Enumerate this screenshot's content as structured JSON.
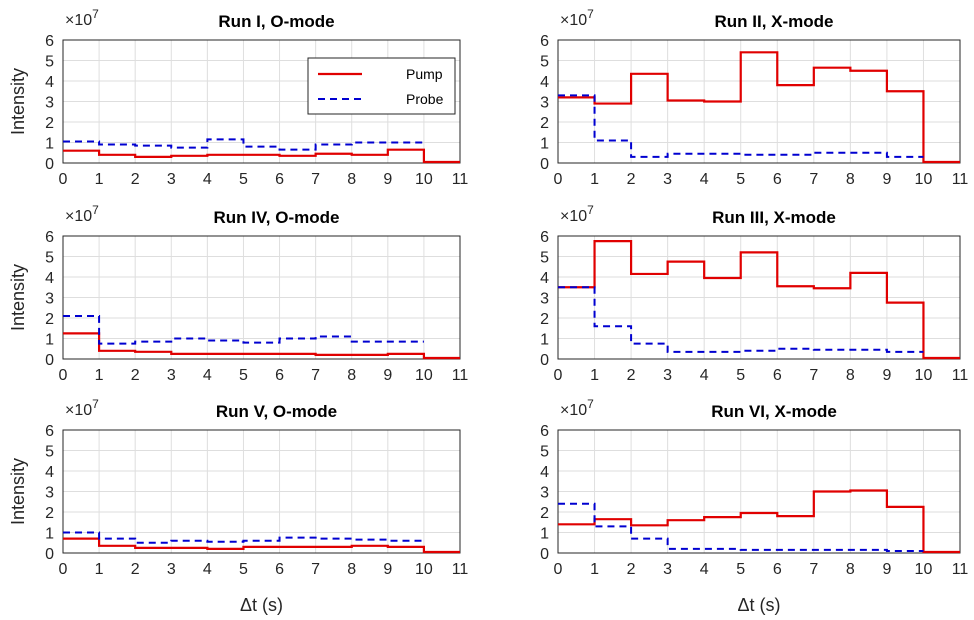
{
  "multiplier_text": "×10",
  "multiplier_exp": "7",
  "ylabel": "Intensity",
  "xlabel": "Δt (s)",
  "legend": {
    "pump": "Pump",
    "probe": "Probe"
  },
  "colors": {
    "pump": "#e00000",
    "probe": "#0000d0"
  },
  "chart_data": [
    {
      "type": "line",
      "title": "Run I, O-mode",
      "xlim": [
        0,
        11
      ],
      "ylim": [
        0,
        6
      ],
      "xticks": [
        0,
        1,
        2,
        3,
        4,
        5,
        6,
        7,
        8,
        9,
        10,
        11
      ],
      "yticks": [
        0,
        1,
        2,
        3,
        4,
        5,
        6
      ],
      "step": true,
      "series": [
        {
          "name": "Pump",
          "style": "solid",
          "x": [
            0,
            1,
            2,
            3,
            4,
            5,
            6,
            7,
            8,
            9,
            10,
            11
          ],
          "values": [
            0.6,
            0.4,
            0.3,
            0.35,
            0.4,
            0.4,
            0.35,
            0.45,
            0.4,
            0.65,
            0.05,
            0.05
          ]
        },
        {
          "name": "Probe",
          "style": "dashed",
          "x": [
            0,
            1,
            2,
            3,
            4,
            5,
            6,
            7,
            8,
            9
          ],
          "values": [
            1.05,
            0.9,
            0.85,
            0.75,
            1.15,
            0.8,
            0.65,
            0.9,
            1.0,
            1.0
          ]
        }
      ]
    },
    {
      "type": "line",
      "title": "Run II, X-mode",
      "xlim": [
        0,
        11
      ],
      "ylim": [
        0,
        6
      ],
      "xticks": [
        0,
        1,
        2,
        3,
        4,
        5,
        6,
        7,
        8,
        9,
        10,
        11
      ],
      "yticks": [
        0,
        1,
        2,
        3,
        4,
        5,
        6
      ],
      "step": true,
      "series": [
        {
          "name": "Pump",
          "style": "solid",
          "x": [
            0,
            1,
            2,
            3,
            4,
            5,
            6,
            7,
            8,
            9,
            10,
            11
          ],
          "values": [
            3.2,
            2.9,
            4.35,
            3.05,
            3.0,
            5.4,
            3.8,
            4.65,
            4.5,
            3.5,
            0.05,
            0.05
          ]
        },
        {
          "name": "Probe",
          "style": "dashed",
          "x": [
            0,
            1,
            2,
            3,
            4,
            5,
            6,
            7,
            8,
            9
          ],
          "values": [
            3.3,
            1.1,
            0.3,
            0.45,
            0.45,
            0.4,
            0.4,
            0.5,
            0.5,
            0.3
          ]
        }
      ]
    },
    {
      "type": "line",
      "title": "Run IV, O-mode",
      "xlim": [
        0,
        11
      ],
      "ylim": [
        0,
        6
      ],
      "xticks": [
        0,
        1,
        2,
        3,
        4,
        5,
        6,
        7,
        8,
        9,
        10,
        11
      ],
      "yticks": [
        0,
        1,
        2,
        3,
        4,
        5,
        6
      ],
      "step": true,
      "series": [
        {
          "name": "Pump",
          "style": "solid",
          "x": [
            0,
            1,
            2,
            3,
            4,
            5,
            6,
            7,
            8,
            9,
            10,
            11
          ],
          "values": [
            1.25,
            0.4,
            0.35,
            0.25,
            0.25,
            0.25,
            0.25,
            0.2,
            0.2,
            0.25,
            0.05,
            0.05
          ]
        },
        {
          "name": "Probe",
          "style": "dashed",
          "x": [
            0,
            1,
            2,
            3,
            4,
            5,
            6,
            7,
            8,
            9
          ],
          "values": [
            2.1,
            0.75,
            0.85,
            1.0,
            0.9,
            0.8,
            1.0,
            1.1,
            0.85,
            0.85
          ]
        }
      ]
    },
    {
      "type": "line",
      "title": "Run III, X-mode",
      "xlim": [
        0,
        11
      ],
      "ylim": [
        0,
        6
      ],
      "xticks": [
        0,
        1,
        2,
        3,
        4,
        5,
        6,
        7,
        8,
        9,
        10,
        11
      ],
      "yticks": [
        0,
        1,
        2,
        3,
        4,
        5,
        6
      ],
      "step": true,
      "series": [
        {
          "name": "Pump",
          "style": "solid",
          "x": [
            0,
            1,
            2,
            3,
            4,
            5,
            6,
            7,
            8,
            9,
            10,
            11
          ],
          "values": [
            3.5,
            5.75,
            4.15,
            4.75,
            3.95,
            5.2,
            3.55,
            3.45,
            4.2,
            2.75,
            0.05,
            0.05
          ]
        },
        {
          "name": "Probe",
          "style": "dashed",
          "x": [
            0,
            1,
            2,
            3,
            4,
            5,
            6,
            7,
            8,
            9
          ],
          "values": [
            3.5,
            1.6,
            0.75,
            0.35,
            0.35,
            0.4,
            0.5,
            0.45,
            0.45,
            0.35
          ]
        }
      ]
    },
    {
      "type": "line",
      "title": "Run V, O-mode",
      "xlim": [
        0,
        11
      ],
      "ylim": [
        0,
        6
      ],
      "xticks": [
        0,
        1,
        2,
        3,
        4,
        5,
        6,
        7,
        8,
        9,
        10,
        11
      ],
      "yticks": [
        0,
        1,
        2,
        3,
        4,
        5,
        6
      ],
      "step": true,
      "series": [
        {
          "name": "Pump",
          "style": "solid",
          "x": [
            0,
            1,
            2,
            3,
            4,
            5,
            6,
            7,
            8,
            9,
            10,
            11
          ],
          "values": [
            0.7,
            0.35,
            0.25,
            0.25,
            0.2,
            0.3,
            0.3,
            0.3,
            0.35,
            0.3,
            0.05,
            0.05
          ]
        },
        {
          "name": "Probe",
          "style": "dashed",
          "x": [
            0,
            1,
            2,
            3,
            4,
            5,
            6,
            7,
            8,
            9
          ],
          "values": [
            1.0,
            0.7,
            0.5,
            0.6,
            0.55,
            0.6,
            0.75,
            0.7,
            0.65,
            0.6
          ]
        }
      ]
    },
    {
      "type": "line",
      "title": "Run VI, X-mode",
      "xlim": [
        0,
        11
      ],
      "ylim": [
        0,
        6
      ],
      "xticks": [
        0,
        1,
        2,
        3,
        4,
        5,
        6,
        7,
        8,
        9,
        10,
        11
      ],
      "yticks": [
        0,
        1,
        2,
        3,
        4,
        5,
        6
      ],
      "step": true,
      "series": [
        {
          "name": "Pump",
          "style": "solid",
          "x": [
            0,
            1,
            2,
            3,
            4,
            5,
            6,
            7,
            8,
            9,
            10,
            11
          ],
          "values": [
            1.4,
            1.65,
            1.35,
            1.6,
            1.75,
            1.95,
            1.8,
            3.0,
            3.05,
            2.25,
            0.05,
            0.05
          ]
        },
        {
          "name": "Probe",
          "style": "dashed",
          "x": [
            0,
            1,
            2,
            3,
            4,
            5,
            6,
            7,
            8,
            9
          ],
          "values": [
            2.4,
            1.3,
            0.7,
            0.2,
            0.2,
            0.15,
            0.15,
            0.15,
            0.15,
            0.1
          ]
        }
      ]
    }
  ]
}
